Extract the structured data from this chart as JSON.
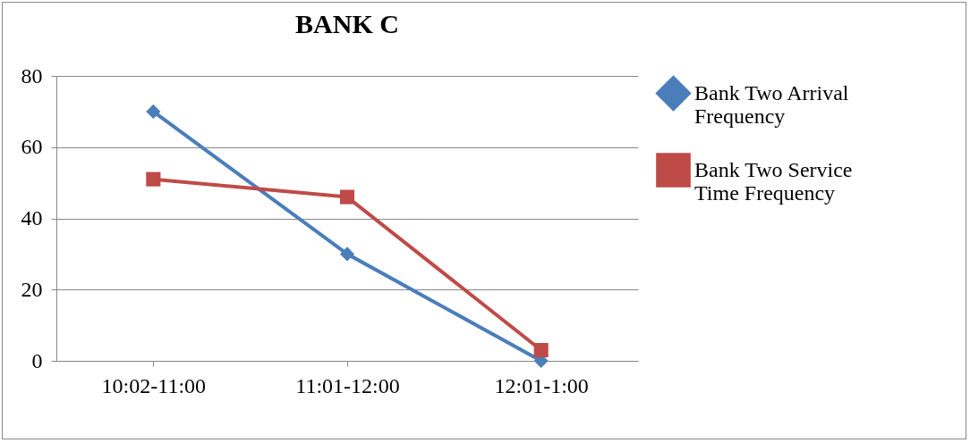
{
  "chart_data": {
    "type": "line",
    "title": "BANK C",
    "categories": [
      "10:02-11:00",
      "11:01-12:00",
      "12:01-1:00"
    ],
    "series": [
      {
        "name": "Bank Two Arrival Frequency",
        "color": "#4a7ebb",
        "marker": "diamond",
        "values": [
          70,
          30,
          0
        ]
      },
      {
        "name": "Bank Two Service Time Frequency",
        "color": "#be4b48",
        "marker": "square",
        "values": [
          51,
          46,
          3
        ]
      }
    ],
    "ylim": [
      0,
      80
    ],
    "yticks": [
      0,
      20,
      40,
      60,
      80
    ],
    "grid": "y",
    "legend": "right"
  }
}
